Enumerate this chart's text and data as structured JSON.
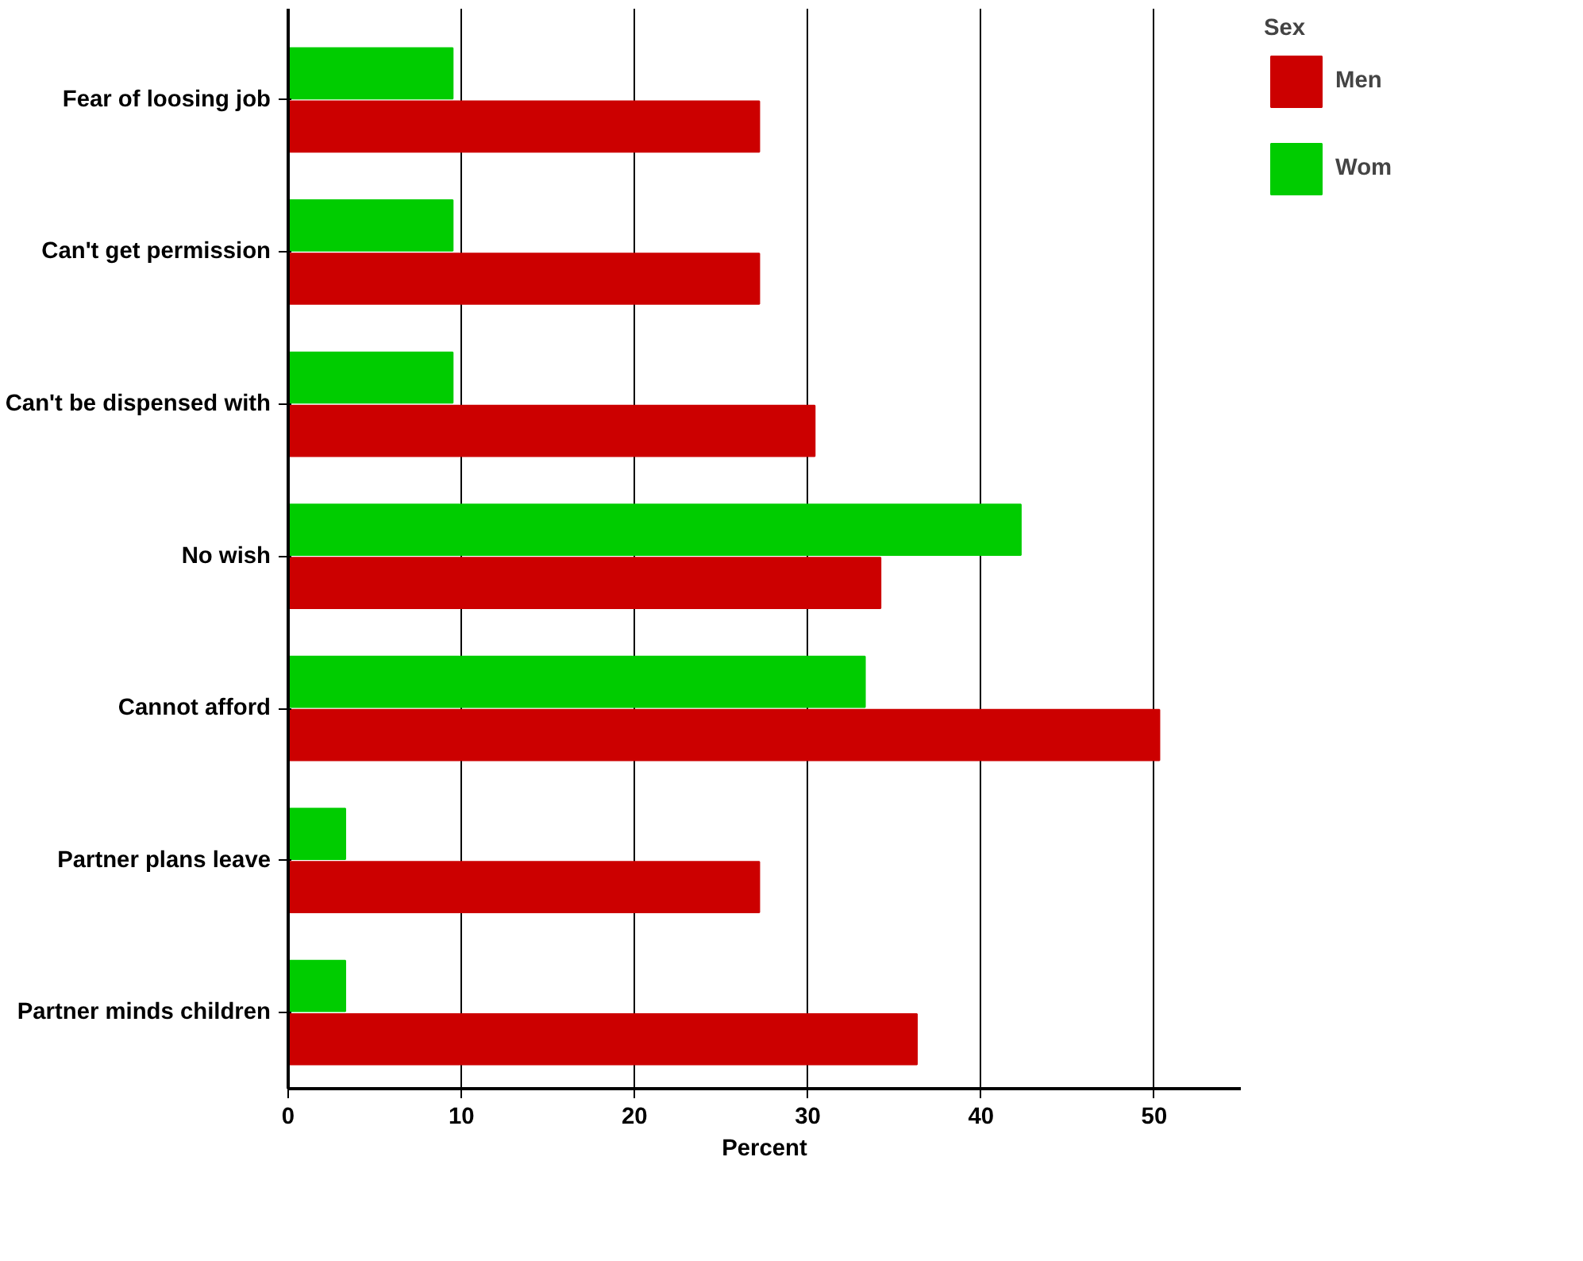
{
  "chart_data": {
    "type": "bar",
    "orientation": "horizontal",
    "xlabel": "Percent",
    "legend_title": "Sex",
    "legend": "top right",
    "categories": [
      "Fear of loosing job",
      "Can't get permission",
      "Can't be dispensed with",
      "No wish",
      "Cannot afford",
      "Partner plans leave",
      "Partner minds children"
    ],
    "series": [
      {
        "name": "Men",
        "color": "#cc0000",
        "values": [
          27.2,
          27.2,
          30.4,
          34.2,
          50.3,
          27.2,
          36.3
        ]
      },
      {
        "name": "Wom",
        "color": "#00cc00",
        "values": [
          9.5,
          9.5,
          9.5,
          42.3,
          33.3,
          3.3,
          3.3
        ]
      }
    ],
    "xlim": [
      0,
      55
    ],
    "xticks": [
      0,
      10,
      20,
      30,
      40,
      50
    ],
    "grid": "x"
  }
}
